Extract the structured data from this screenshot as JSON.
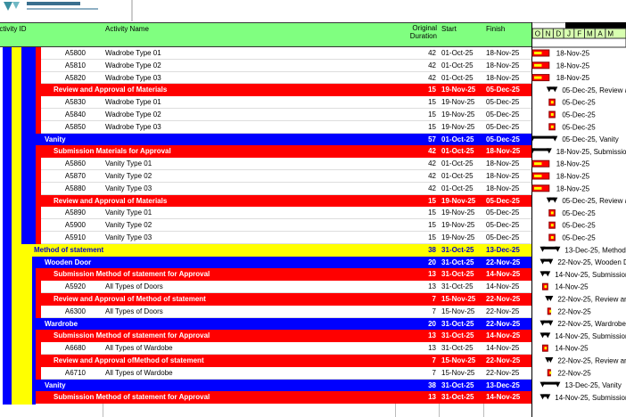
{
  "header": {
    "activity_id": "Activity ID",
    "activity_name": "Activity Name",
    "original_duration": "Original Duration",
    "start": "Start",
    "finish": "Finish",
    "months": [
      "O",
      "N",
      "D",
      "J",
      "F",
      "M",
      "A",
      "M"
    ]
  },
  "initial_outline_colors": [
    "#0000ff",
    "#ffff00",
    "#0000ff",
    "#0000ff",
    "#ff0000"
  ],
  "rows": [
    {
      "level": 6,
      "id": "A5800",
      "name": "Wadrobe Type 01",
      "duration": 42,
      "start": "01-Oct-25",
      "finish": "18-Nov-25",
      "gantt_label": "18-Nov-25"
    },
    {
      "level": 6,
      "id": "A5810",
      "name": "Wadrobe Type 02",
      "duration": 42,
      "start": "01-Oct-25",
      "finish": "18-Nov-25",
      "gantt_label": "18-Nov-25"
    },
    {
      "level": 6,
      "id": "A5820",
      "name": "Wadrobe Type 03",
      "duration": 42,
      "start": "01-Oct-25",
      "finish": "18-Nov-25",
      "gantt_label": "18-Nov-25"
    },
    {
      "level": 5,
      "color": "#ff0000",
      "name": "Review and Approval of Materials",
      "duration": 15,
      "start": "19-Nov-25",
      "finish": "05-Dec-25",
      "gantt_label": "05-Dec-25, Review a"
    },
    {
      "level": 6,
      "id": "A5830",
      "name": "Wadrobe Type 01",
      "duration": 15,
      "start": "19-Nov-25",
      "finish": "05-Dec-25",
      "gantt_label": "05-Dec-25"
    },
    {
      "level": 6,
      "id": "A5840",
      "name": "Wadrobe Type 02",
      "duration": 15,
      "start": "19-Nov-25",
      "finish": "05-Dec-25",
      "gantt_label": "05-Dec-25"
    },
    {
      "level": 6,
      "id": "A5850",
      "name": "Wadrobe Type 03",
      "duration": 15,
      "start": "19-Nov-25",
      "finish": "05-Dec-25",
      "gantt_label": "05-Dec-25"
    },
    {
      "level": 4,
      "color": "#0000ff",
      "name": "Vanity",
      "duration": 57,
      "start": "01-Oct-25",
      "finish": "05-Dec-25",
      "gantt_label": "05-Dec-25, Vanity"
    },
    {
      "level": 5,
      "color": "#ff0000",
      "name": "Submission Materials  for Approval",
      "duration": 42,
      "start": "01-Oct-25",
      "finish": "18-Nov-25",
      "gantt_label": "18-Nov-25, Submissio"
    },
    {
      "level": 6,
      "id": "A5860",
      "name": "Vanity Type 01",
      "duration": 42,
      "start": "01-Oct-25",
      "finish": "18-Nov-25",
      "gantt_label": "18-Nov-25"
    },
    {
      "level": 6,
      "id": "A5870",
      "name": "Vanity Type 02",
      "duration": 42,
      "start": "01-Oct-25",
      "finish": "18-Nov-25",
      "gantt_label": "18-Nov-25"
    },
    {
      "level": 6,
      "id": "A5880",
      "name": "Vanity Type 03",
      "duration": 42,
      "start": "01-Oct-25",
      "finish": "18-Nov-25",
      "gantt_label": "18-Nov-25"
    },
    {
      "level": 5,
      "color": "#ff0000",
      "name": "Review and Approval of Materials",
      "duration": 15,
      "start": "19-Nov-25",
      "finish": "05-Dec-25",
      "gantt_label": "05-Dec-25, Review a"
    },
    {
      "level": 6,
      "id": "A5890",
      "name": "Vanity Type 01",
      "duration": 15,
      "start": "19-Nov-25",
      "finish": "05-Dec-25",
      "gantt_label": "05-Dec-25"
    },
    {
      "level": 6,
      "id": "A5900",
      "name": "Vanity Type 02",
      "duration": 15,
      "start": "19-Nov-25",
      "finish": "05-Dec-25",
      "gantt_label": "05-Dec-25"
    },
    {
      "level": 6,
      "id": "A5910",
      "name": "Vanity Type 03",
      "duration": 15,
      "start": "19-Nov-25",
      "finish": "05-Dec-25",
      "gantt_label": "05-Dec-25"
    },
    {
      "level": 3,
      "color": "#ffff00",
      "name": "Method of statement",
      "duration": 38,
      "start": "31-Oct-25",
      "finish": "13-Dec-25",
      "gantt_label": "13-Dec-25, Method"
    },
    {
      "level": 4,
      "color": "#0000ff",
      "name": "Wooden Door",
      "duration": 20,
      "start": "31-Oct-25",
      "finish": "22-Nov-25",
      "gantt_label": "22-Nov-25, Wooden D"
    },
    {
      "level": 5,
      "color": "#ff0000",
      "name": "Submission Method of statement for Approval",
      "duration": 13,
      "start": "31-Oct-25",
      "finish": "14-Nov-25",
      "gantt_label": "14-Nov-25, Submission"
    },
    {
      "level": 6,
      "id": "A5920",
      "name": "All Types of Doors",
      "duration": 13,
      "start": "31-Oct-25",
      "finish": "14-Nov-25",
      "gantt_label": "14-Nov-25"
    },
    {
      "level": 5,
      "color": "#ff0000",
      "name": "Review and Approval of Method of statement",
      "duration": 7,
      "start": "15-Nov-25",
      "finish": "22-Nov-25",
      "gantt_label": "22-Nov-25, Review an"
    },
    {
      "level": 6,
      "id": "A6300",
      "name": "All Types of Doors",
      "duration": 7,
      "start": "15-Nov-25",
      "finish": "22-Nov-25",
      "gantt_label": "22-Nov-25"
    },
    {
      "level": 4,
      "color": "#0000ff",
      "name": "Wardrobe",
      "duration": 20,
      "start": "31-Oct-25",
      "finish": "22-Nov-25",
      "gantt_label": "22-Nov-25, Wardrobe"
    },
    {
      "level": 5,
      "color": "#ff0000",
      "name": "Submission Method of statement for Approval",
      "duration": 13,
      "start": "31-Oct-25",
      "finish": "14-Nov-25",
      "gantt_label": "14-Nov-25, Submission"
    },
    {
      "level": 6,
      "id": "A6680",
      "name": "All Types of Wardobe",
      "duration": 13,
      "start": "31-Oct-25",
      "finish": "14-Nov-25",
      "gantt_label": "14-Nov-25"
    },
    {
      "level": 5,
      "color": "#ff0000",
      "name": "Review and Approval ofMethod of statement",
      "duration": 7,
      "start": "15-Nov-25",
      "finish": "22-Nov-25",
      "gantt_label": "22-Nov-25, Review and"
    },
    {
      "level": 6,
      "id": "A6710",
      "name": "All Types of Wardobe",
      "duration": 7,
      "start": "15-Nov-25",
      "finish": "22-Nov-25",
      "gantt_label": "22-Nov-25"
    },
    {
      "level": 4,
      "color": "#0000ff",
      "name": "Vanity",
      "duration": 38,
      "start": "31-Oct-25",
      "finish": "13-Dec-25",
      "gantt_label": "13-Dec-25, Vanity"
    },
    {
      "level": 5,
      "color": "#ff0000",
      "name": "Submission Method of statement for Approval",
      "duration": 13,
      "start": "31-Oct-25",
      "finish": "14-Nov-25",
      "gantt_label": "14-Nov-25, Submission"
    }
  ]
}
